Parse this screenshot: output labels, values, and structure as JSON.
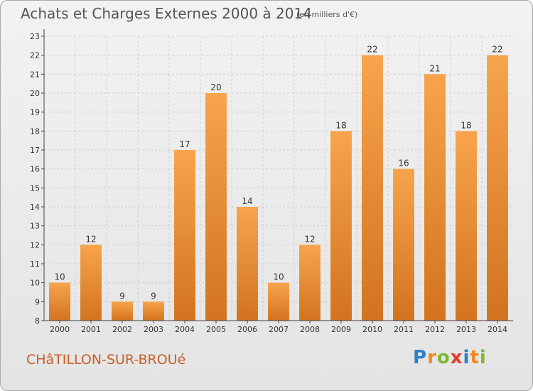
{
  "header": {
    "title": "Achats et Charges Externes 2000 à 2014",
    "unit": "(en milliers d'€)"
  },
  "footer": {
    "commune": "CHâTILLON-SUR-BROUé",
    "logo_letters": [
      {
        "ch": "P",
        "color": "#2f7fc9"
      },
      {
        "ch": "r",
        "color": "#f08a1d"
      },
      {
        "ch": "o",
        "color": "#7cb82f"
      },
      {
        "ch": "x",
        "color": "#e3392b"
      },
      {
        "ch": "i",
        "color": "#2f7fc9"
      },
      {
        "ch": "t",
        "color": "#f08a1d"
      },
      {
        "ch": "i",
        "color": "#7cb82f"
      }
    ]
  },
  "colors": {
    "bar_light": "#f7a44c",
    "bar_dark": "#d2731f",
    "grid": "#cfcfcf",
    "axis": "#444444"
  },
  "chart_data": {
    "type": "bar",
    "title": "Achats et Charges Externes 2000 à 2014",
    "subtitle": "(en milliers d'€)",
    "xlabel": "",
    "ylabel": "",
    "categories": [
      "2000",
      "2001",
      "2002",
      "2003",
      "2004",
      "2005",
      "2006",
      "2007",
      "2008",
      "2009",
      "2010",
      "2011",
      "2012",
      "2013",
      "2014"
    ],
    "values": [
      10,
      12,
      9,
      9,
      17,
      20,
      14,
      10,
      12,
      18,
      22,
      16,
      21,
      18,
      22
    ],
    "value_labels": [
      "10",
      "12",
      "9",
      "9",
      "17",
      "20",
      "14",
      "10",
      "12",
      "18",
      "22",
      "16",
      "21",
      "18",
      "22"
    ],
    "ylim": [
      8,
      23
    ],
    "yticks": [
      8,
      9,
      10,
      11,
      12,
      13,
      14,
      15,
      16,
      17,
      18,
      19,
      20,
      21,
      22,
      23
    ],
    "grid": true,
    "legend": "none"
  }
}
